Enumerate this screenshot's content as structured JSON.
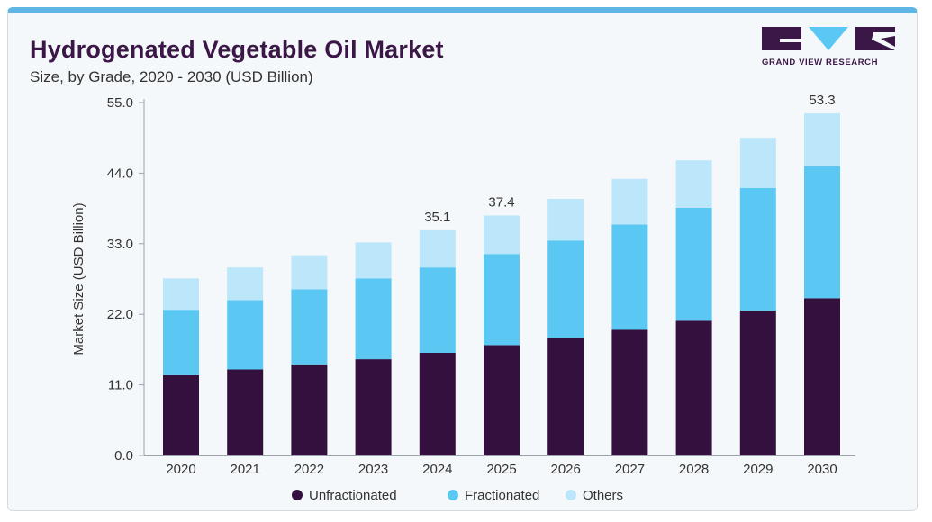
{
  "header": {
    "title": "Hydrogenated Vegetable Oil Market",
    "subtitle": "Size, by Grade, 2020 - 2030 (USD Billion)"
  },
  "logo": {
    "text": "GRAND VIEW RESEARCH",
    "color": "#3a1747"
  },
  "chart_data": {
    "type": "bar",
    "stacked": true,
    "title": "Hydrogenated Vegetable Oil Market",
    "subtitle": "Size, by Grade, 2020 - 2030 (USD Billion)",
    "ylabel": "Market Size (USD Billion)",
    "xlabel": "",
    "ylim": [
      0,
      55
    ],
    "yticks": [
      0,
      11,
      22,
      33,
      44,
      55
    ],
    "ytick_labels": [
      "0.0",
      "11.0",
      "22.0",
      "33.0",
      "44.0",
      "55.0"
    ],
    "grid": false,
    "legend_position": "bottom-center",
    "categories": [
      "2020",
      "2021",
      "2022",
      "2023",
      "2024",
      "2025",
      "2026",
      "2027",
      "2028",
      "2029",
      "2030"
    ],
    "series": [
      {
        "name": "Unfractionated",
        "color": "#34103f",
        "values": [
          12.5,
          13.4,
          14.2,
          15.0,
          16.0,
          17.2,
          18.3,
          19.6,
          21.0,
          22.6,
          24.5
        ]
      },
      {
        "name": "Fractionated",
        "color": "#5bc8f3",
        "values": [
          10.2,
          10.8,
          11.7,
          12.6,
          13.3,
          14.2,
          15.2,
          16.4,
          17.6,
          19.1,
          20.6
        ]
      },
      {
        "name": "Others",
        "color": "#bce7fb",
        "values": [
          4.9,
          5.1,
          5.3,
          5.6,
          5.8,
          6.0,
          6.5,
          7.1,
          7.4,
          7.8,
          8.2
        ]
      }
    ],
    "annotations": [
      {
        "category": "2024",
        "label": "35.1",
        "value": 35.1
      },
      {
        "category": "2025",
        "label": "37.4",
        "value": 37.4
      },
      {
        "category": "2030",
        "label": "53.3",
        "value": 53.3
      }
    ]
  }
}
